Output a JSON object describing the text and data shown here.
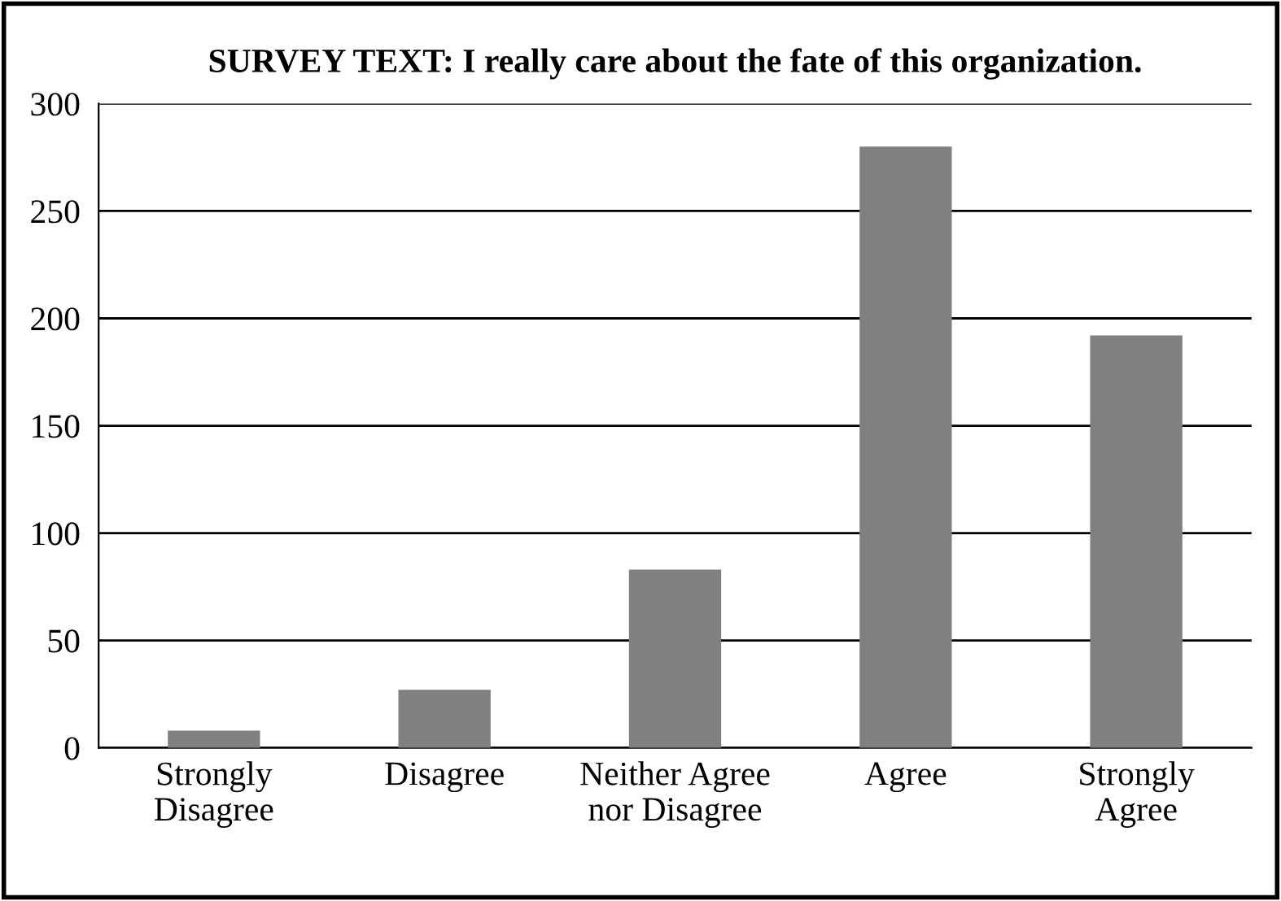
{
  "chart_data": {
    "type": "bar",
    "title": "SURVEY TEXT: I really care about the fate of this organization.",
    "categories": [
      "Strongly\nDisagree",
      "Disagree",
      "Neither Agree\nnor Disagree",
      "Agree",
      "Strongly\nAgree"
    ],
    "values": [
      8,
      27,
      83,
      280,
      192
    ],
    "color": "#808080",
    "ylim": [
      0,
      300
    ],
    "yticks": [
      0,
      50,
      100,
      150,
      200,
      250,
      300
    ],
    "grid": "y",
    "legend": false
  }
}
